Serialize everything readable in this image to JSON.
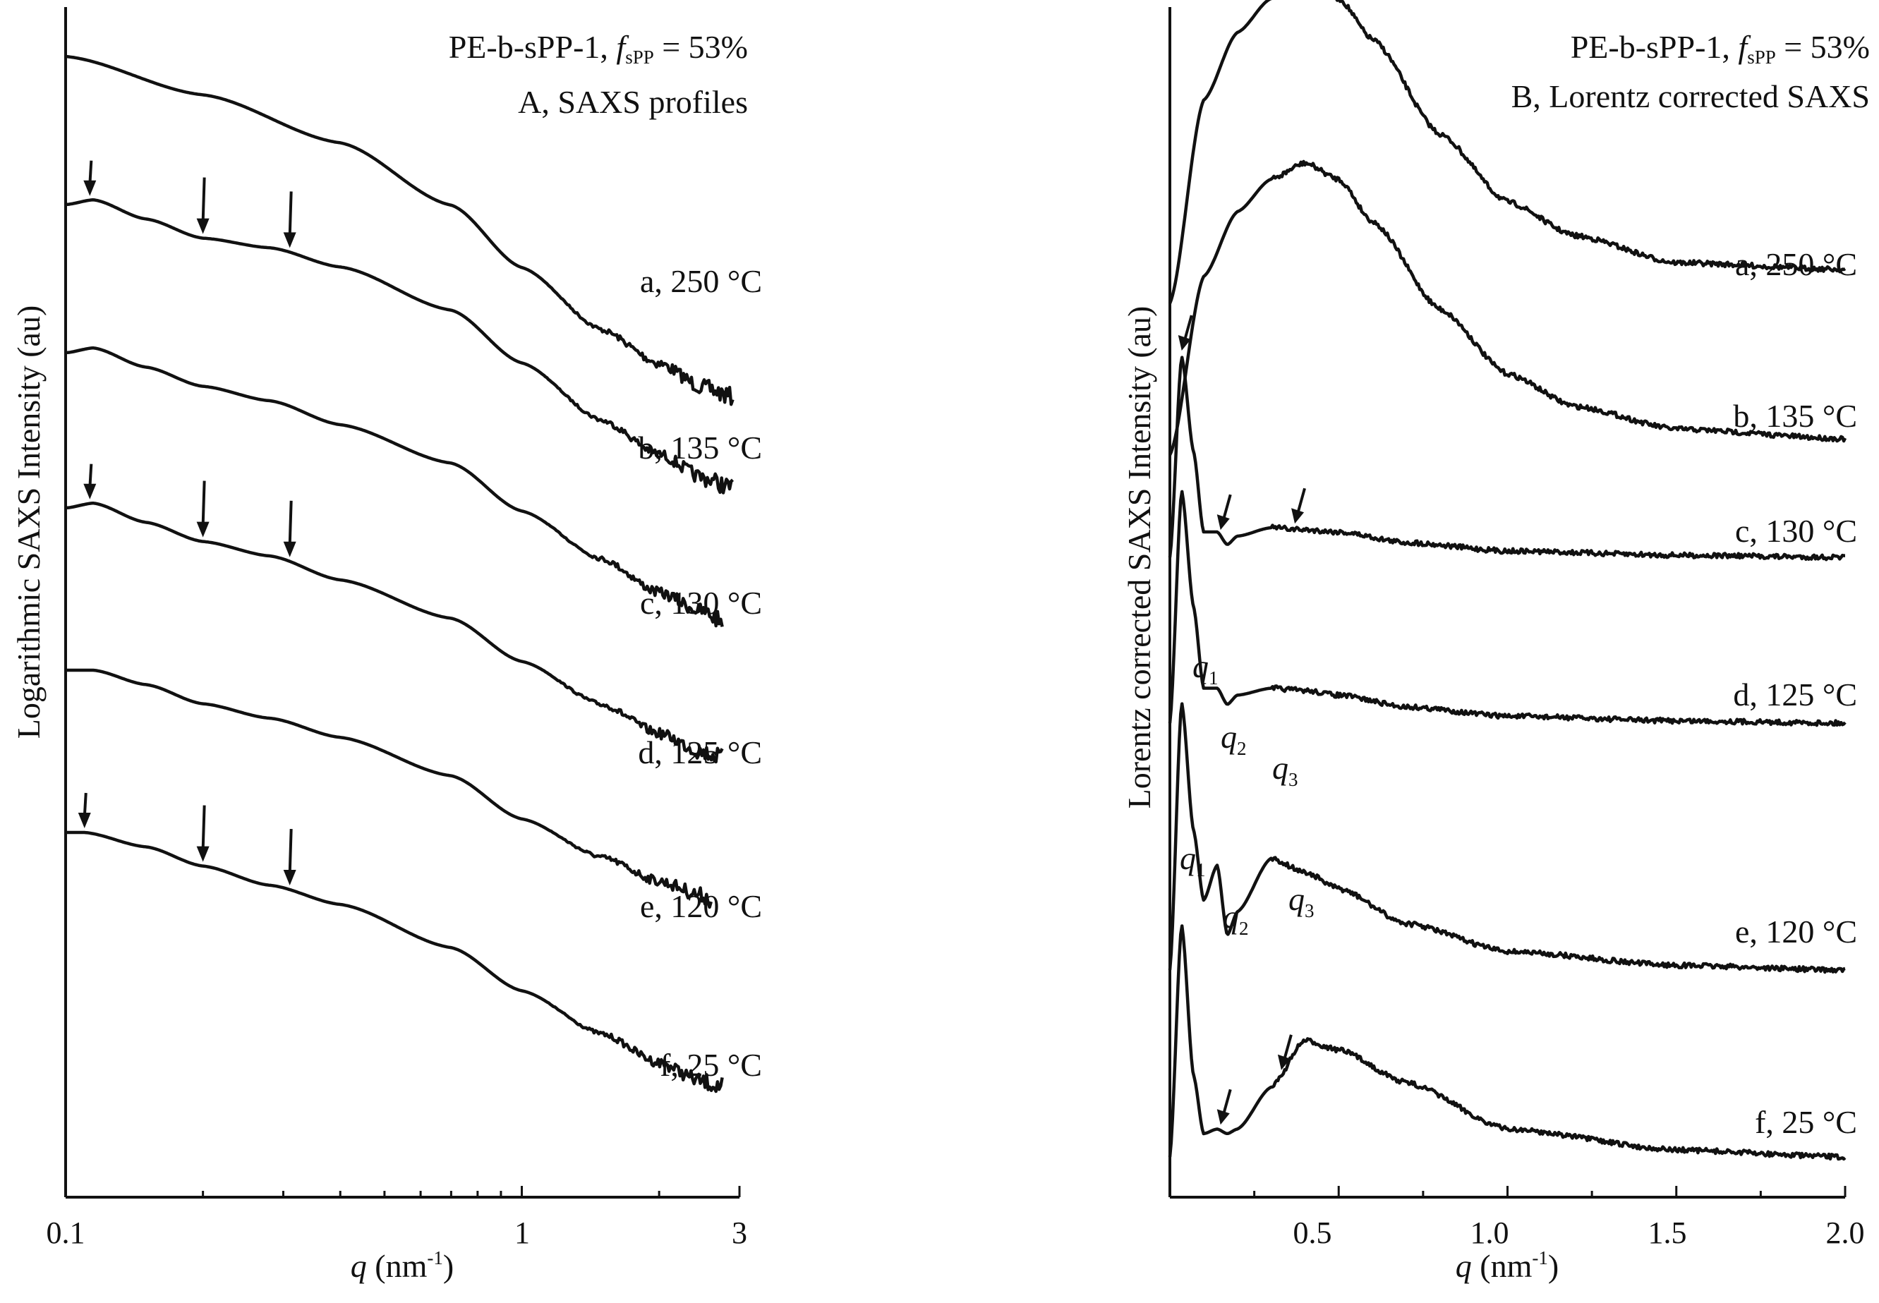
{
  "chart_data": [
    {
      "type": "line",
      "panel": "A",
      "title": "PE-b-sPP-1, f_sPP = 53%",
      "title_prefix": "PE-b-sPP-1, ",
      "title_f": "f",
      "title_f_sub": "sPP",
      "title_suffix": " = 53%",
      "subtitle": "A, SAXS profiles",
      "xlabel_var": "q",
      "xlabel_unit": " (nm",
      "xlabel_exp": "-1",
      "xlabel_close": ")",
      "ylabel": "Logarithmic SAXS Intensity (au)",
      "xscale": "log",
      "xlim": [
        0.1,
        3
      ],
      "x_ticks": [
        0.1,
        1,
        3
      ],
      "x_tick_labels": [
        "0.1",
        "1",
        "3"
      ],
      "legend": "curve labels at right end",
      "series": [
        {
          "name": "a, 250 °C",
          "label": "a, 250 °C",
          "x": [
            0.1,
            0.2,
            0.4,
            0.7,
            1.0,
            1.5,
            2.0,
            2.5,
            2.9
          ],
          "values": [
            10,
            9.2,
            8.2,
            6.9,
            5.6,
            4.3,
            3.6,
            3.1,
            2.9
          ]
        },
        {
          "name": "b, 135 °C",
          "label": "b, 135 °C",
          "x": [
            0.1,
            0.115,
            0.15,
            0.2,
            0.28,
            0.4,
            0.7,
            1.0,
            1.5,
            2.0,
            2.5,
            2.9
          ],
          "values": [
            7.9,
            8.0,
            7.6,
            7.2,
            7.0,
            6.6,
            5.7,
            4.6,
            3.4,
            2.7,
            2.2,
            2.0
          ],
          "arrows_at_q": [
            0.113,
            0.2,
            0.31
          ]
        },
        {
          "name": "c, 130 °C",
          "label": "c, 130 °C",
          "x": [
            0.1,
            0.115,
            0.15,
            0.2,
            0.28,
            0.4,
            0.7,
            1.0,
            1.5,
            2.0,
            2.5,
            2.75
          ],
          "values": [
            6.9,
            7.0,
            6.6,
            6.2,
            5.9,
            5.4,
            4.6,
            3.6,
            2.6,
            1.9,
            1.5,
            1.3
          ]
        },
        {
          "name": "d, 125 °C",
          "label": "d, 125 °C",
          "x": [
            0.1,
            0.115,
            0.15,
            0.2,
            0.28,
            0.4,
            0.7,
            1.0,
            1.5,
            2.0,
            2.5,
            2.75
          ],
          "values": [
            5.6,
            5.7,
            5.3,
            4.9,
            4.6,
            4.1,
            3.3,
            2.4,
            1.5,
            0.9,
            0.5,
            0.4
          ],
          "arrows_at_q": [
            0.113,
            0.2,
            0.31
          ]
        },
        {
          "name": "e, 120 °C",
          "label": "e, 120 °C",
          "x": [
            0.1,
            0.115,
            0.15,
            0.2,
            0.28,
            0.4,
            0.7,
            1.0,
            1.5,
            2.0,
            2.5,
            2.6
          ],
          "values": [
            4.6,
            4.6,
            4.3,
            3.9,
            3.6,
            3.2,
            2.4,
            1.5,
            0.7,
            0.2,
            -0.1,
            -0.2
          ]
        },
        {
          "name": "f, 25 °C",
          "label": "f, 25 °C",
          "x": [
            0.1,
            0.11,
            0.15,
            0.2,
            0.28,
            0.4,
            0.7,
            1.0,
            1.5,
            2.0,
            2.5,
            2.75
          ],
          "values": [
            3.3,
            3.3,
            3.0,
            2.6,
            2.2,
            1.8,
            0.9,
            0.0,
            -0.9,
            -1.5,
            -1.9,
            -2.0
          ],
          "arrows_at_q": [
            0.11,
            0.2,
            0.31
          ]
        }
      ]
    },
    {
      "type": "line",
      "panel": "B",
      "title": "PE-b-sPP-1, f_sPP = 53%",
      "title_prefix": "PE-b-sPP-1, ",
      "title_f": "f",
      "title_f_sub": "sPP",
      "title_suffix": " = 53%",
      "subtitle": "B, Lorentz corrected SAXS",
      "xlabel_var": "q",
      "xlabel_unit": " (nm",
      "xlabel_exp": "-1",
      "xlabel_close": ")",
      "ylabel": "Lorentz corrected SAXS Intensity (au)",
      "xscale": "linear",
      "xlim": [
        0.0,
        2.0
      ],
      "x_ticks": [
        0.5,
        1.0,
        1.5,
        2.0
      ],
      "x_tick_labels": [
        "0.5",
        "1.0",
        "1.5",
        "2.0"
      ],
      "legend": "curve labels at right end",
      "peak_labels": {
        "q1": "q",
        "q1_sub": "1",
        "q2": "q",
        "q2_sub": "2",
        "q3": "q",
        "q3_sub": "3"
      },
      "series": [
        {
          "name": "a, 250 °C",
          "label": "a, 250 °C",
          "x": [
            0.0,
            0.1,
            0.2,
            0.3,
            0.4,
            0.5,
            0.6,
            0.8,
            1.0,
            1.2,
            1.5,
            2.0
          ],
          "values": [
            0.0,
            0.6,
            0.8,
            0.9,
            0.95,
            0.9,
            0.78,
            0.5,
            0.3,
            0.2,
            0.12,
            0.1
          ]
        },
        {
          "name": "b, 135 °C",
          "label": "b, 135 °C",
          "x": [
            0.0,
            0.1,
            0.2,
            0.3,
            0.4,
            0.5,
            0.6,
            0.8,
            1.0,
            1.2,
            1.5,
            2.0
          ],
          "values": [
            0.0,
            0.55,
            0.75,
            0.85,
            0.9,
            0.85,
            0.72,
            0.45,
            0.25,
            0.15,
            0.08,
            0.05
          ]
        },
        {
          "name": "c, 130 °C",
          "label": "c, 130 °C",
          "x": [
            0.0,
            0.035,
            0.07,
            0.1,
            0.14,
            0.17,
            0.2,
            0.3,
            0.4,
            0.5,
            0.7,
            1.0,
            1.5,
            2.0
          ],
          "values": [
            0.0,
            0.95,
            0.5,
            0.12,
            0.12,
            0.06,
            0.1,
            0.14,
            0.13,
            0.12,
            0.07,
            0.03,
            0.01,
            0.0
          ],
          "arrows_at_q": [
            0.035,
            0.15,
            0.37
          ]
        },
        {
          "name": "d, 125 °C",
          "label": "d, 125 °C",
          "x": [
            0.0,
            0.035,
            0.07,
            0.1,
            0.14,
            0.17,
            0.2,
            0.3,
            0.4,
            0.5,
            0.7,
            1.0,
            1.5,
            2.0
          ],
          "values": [
            0.0,
            1.0,
            0.5,
            0.15,
            0.15,
            0.08,
            0.12,
            0.15,
            0.14,
            0.12,
            0.07,
            0.03,
            0.01,
            0.0
          ]
        },
        {
          "name": "e, 120 °C",
          "label": "e, 120 °C",
          "x": [
            0.0,
            0.035,
            0.07,
            0.1,
            0.14,
            0.17,
            0.2,
            0.3,
            0.4,
            0.5,
            0.7,
            1.0,
            1.5,
            2.0
          ],
          "values": [
            0.0,
            1.15,
            0.6,
            0.3,
            0.45,
            0.15,
            0.25,
            0.48,
            0.42,
            0.35,
            0.2,
            0.08,
            0.02,
            0.0
          ]
        },
        {
          "name": "f, 25 °C",
          "label": "f, 25 °C",
          "x": [
            0.0,
            0.035,
            0.07,
            0.1,
            0.14,
            0.17,
            0.2,
            0.3,
            0.4,
            0.5,
            0.7,
            1.0,
            1.5,
            2.0
          ],
          "values": [
            0.0,
            1.0,
            0.35,
            0.1,
            0.12,
            0.1,
            0.12,
            0.3,
            0.5,
            0.46,
            0.32,
            0.12,
            0.03,
            0.0
          ],
          "arrows_at_q": [
            0.15,
            0.33
          ]
        }
      ]
    }
  ]
}
